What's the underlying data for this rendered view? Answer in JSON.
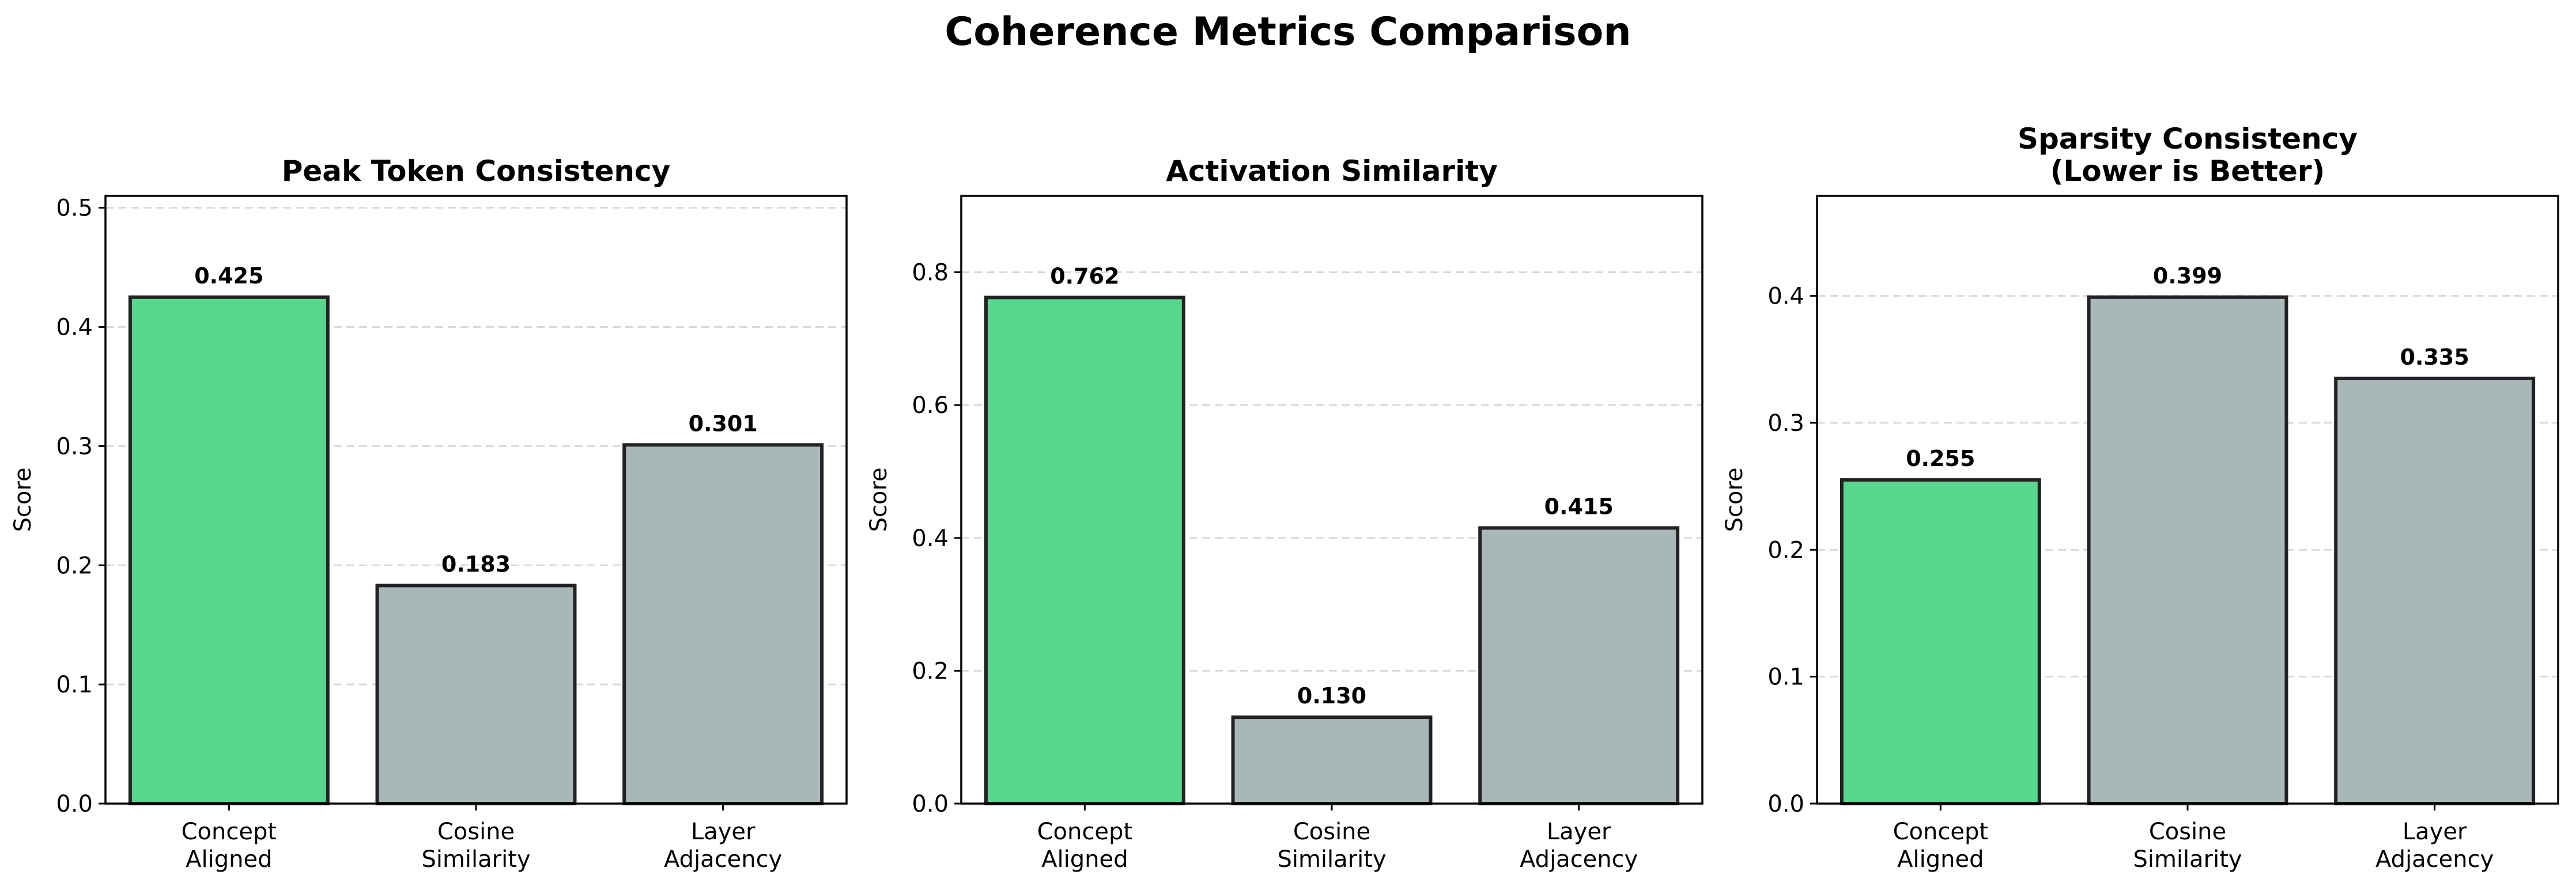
{
  "figure": {
    "title": "Coherence Metrics Comparison"
  },
  "colors": {
    "highlight": "#58d68d",
    "neutral": "#aab7b8",
    "edge": "#222222",
    "grid": "#d9d9d9"
  },
  "chart_data": [
    {
      "type": "bar",
      "title": "Peak Token Consistency",
      "xlabel": "",
      "ylabel": "Score",
      "categories": [
        "Concept\nAligned",
        "Cosine\nSimilarity",
        "Layer\nAdjacency"
      ],
      "values": [
        0.425,
        0.183,
        0.301
      ],
      "value_labels": [
        "0.425",
        "0.183",
        "0.301"
      ],
      "bar_colors": [
        "highlight",
        "neutral",
        "neutral"
      ],
      "ylim": [
        0,
        0.51
      ],
      "yticks": [
        0.0,
        0.1,
        0.2,
        0.3,
        0.4,
        0.5
      ],
      "ytick_labels": [
        "0.0",
        "0.1",
        "0.2",
        "0.3",
        "0.4",
        "0.5"
      ],
      "grid": "y-dashed"
    },
    {
      "type": "bar",
      "title": "Activation Similarity",
      "xlabel": "",
      "ylabel": "Score",
      "categories": [
        "Concept\nAligned",
        "Cosine\nSimilarity",
        "Layer\nAdjacency"
      ],
      "values": [
        0.762,
        0.13,
        0.415
      ],
      "value_labels": [
        "0.762",
        "0.130",
        "0.415"
      ],
      "bar_colors": [
        "highlight",
        "neutral",
        "neutral"
      ],
      "ylim": [
        0,
        0.915
      ],
      "yticks": [
        0.0,
        0.2,
        0.4,
        0.6,
        0.8
      ],
      "ytick_labels": [
        "0.0",
        "0.2",
        "0.4",
        "0.6",
        "0.8"
      ],
      "grid": "y-dashed"
    },
    {
      "type": "bar",
      "title": "Sparsity Consistency\n(Lower is Better)",
      "xlabel": "",
      "ylabel": "Score",
      "categories": [
        "Concept\nAligned",
        "Cosine\nSimilarity",
        "Layer\nAdjacency"
      ],
      "values": [
        0.255,
        0.399,
        0.335
      ],
      "value_labels": [
        "0.255",
        "0.399",
        "0.335"
      ],
      "bar_colors": [
        "highlight",
        "neutral",
        "neutral"
      ],
      "ylim": [
        0,
        0.4788
      ],
      "yticks": [
        0.0,
        0.1,
        0.2,
        0.3,
        0.4
      ],
      "ytick_labels": [
        "0.0",
        "0.1",
        "0.2",
        "0.3",
        "0.4"
      ],
      "grid": "y-dashed"
    }
  ]
}
